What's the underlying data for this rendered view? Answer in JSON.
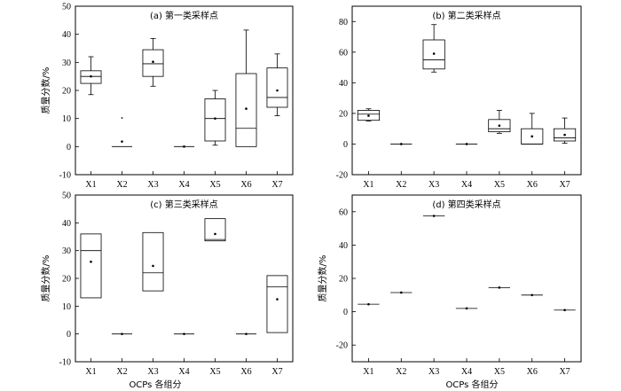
{
  "figure": {
    "x_axis_label": "OCPs 各组分",
    "y_axis_label": "质量分数/%"
  },
  "chart_data": [
    {
      "type": "box",
      "title": "(a) 第一类采样点",
      "ylabel": "质量分数/%",
      "xlabel": "",
      "ylim": [
        -10,
        50
      ],
      "yticks": [
        -10,
        0,
        10,
        20,
        30,
        40,
        50
      ],
      "categories": [
        "X1",
        "X2",
        "X3",
        "X4",
        "X5",
        "X6",
        "X7"
      ],
      "boxes": [
        {
          "category": "X1",
          "min": 18.5,
          "q1": 22.5,
          "median": 25.0,
          "q3": 27.0,
          "max": 32.0,
          "mean": 25.0
        },
        {
          "category": "X2",
          "min": 0,
          "q1": 0,
          "median": 0,
          "q3": 0,
          "max": 0,
          "mean": 1.8,
          "outliers": [
            10.2
          ]
        },
        {
          "category": "X3",
          "min": 21.5,
          "q1": 25.0,
          "median": 29.5,
          "q3": 34.5,
          "max": 38.5,
          "mean": 30.2
        },
        {
          "category": "X4",
          "min": 0,
          "q1": 0,
          "median": 0,
          "q3": 0,
          "max": 0,
          "mean": 0
        },
        {
          "category": "X5",
          "min": 0.5,
          "q1": 2.0,
          "median": 10.0,
          "q3": 17.0,
          "max": 20.0,
          "mean": 10.0
        },
        {
          "category": "X6",
          "min": 0,
          "q1": 0,
          "median": 6.5,
          "q3": 26.0,
          "max": 41.5,
          "mean": 13.5
        },
        {
          "category": "X7",
          "min": 11.0,
          "q1": 14.0,
          "median": 17.5,
          "q3": 28.0,
          "max": 33.0,
          "mean": 20.0
        }
      ]
    },
    {
      "type": "box",
      "title": "(b) 第二类采样点",
      "ylabel": "",
      "xlabel": "",
      "ylim": [
        -20,
        90
      ],
      "yticks": [
        -20,
        0,
        20,
        40,
        60,
        80
      ],
      "categories": [
        "X1",
        "X2",
        "X3",
        "X4",
        "X5",
        "X6",
        "X7"
      ],
      "boxes": [
        {
          "category": "X1",
          "min": 15.0,
          "q1": 15.5,
          "median": 19.5,
          "q3": 22.0,
          "max": 23.0,
          "mean": 18.5
        },
        {
          "category": "X2",
          "min": 0,
          "q1": 0,
          "median": 0,
          "q3": 0,
          "max": 0,
          "mean": 0
        },
        {
          "category": "X3",
          "min": 47.0,
          "q1": 49.0,
          "median": 55.0,
          "q3": 68.0,
          "max": 78.0,
          "mean": 59.0
        },
        {
          "category": "X4",
          "min": 0,
          "q1": 0,
          "median": 0,
          "q3": 0,
          "max": 0,
          "mean": 0
        },
        {
          "category": "X5",
          "min": 7.0,
          "q1": 8.0,
          "median": 10.0,
          "q3": 16.0,
          "max": 22.0,
          "mean": 12.0
        },
        {
          "category": "X6",
          "min": 0,
          "q1": 0,
          "median": 0,
          "q3": 10.0,
          "max": 20.0,
          "mean": 5.0
        },
        {
          "category": "X7",
          "min": 0.5,
          "q1": 2.0,
          "median": 4.0,
          "q3": 10.0,
          "max": 17.0,
          "mean": 6.0
        }
      ]
    },
    {
      "type": "box",
      "title": "(c) 第三类采样点",
      "ylabel": "质量分数/%",
      "xlabel": "OCPs 各组分",
      "ylim": [
        -10,
        50
      ],
      "yticks": [
        -10,
        0,
        10,
        20,
        30,
        40,
        50
      ],
      "categories": [
        "X1",
        "X2",
        "X3",
        "X4",
        "X5",
        "X6",
        "X7"
      ],
      "boxes": [
        {
          "category": "X1",
          "min": 13.0,
          "q1": 13.0,
          "median": 30.0,
          "q3": 36.0,
          "max": 36.0,
          "mean": 26.0
        },
        {
          "category": "X2",
          "min": 0,
          "q1": 0,
          "median": 0,
          "q3": 0,
          "max": 0,
          "mean": 0
        },
        {
          "category": "X3",
          "min": 15.5,
          "q1": 15.5,
          "median": 22.0,
          "q3": 36.5,
          "max": 36.5,
          "mean": 24.5
        },
        {
          "category": "X4",
          "min": 0,
          "q1": 0,
          "median": 0,
          "q3": 0,
          "max": 0,
          "mean": 0
        },
        {
          "category": "X5",
          "min": 33.5,
          "q1": 33.5,
          "median": 34.0,
          "q3": 41.5,
          "max": 41.5,
          "mean": 36.0
        },
        {
          "category": "X6",
          "min": 0,
          "q1": 0,
          "median": 0,
          "q3": 0,
          "max": 0,
          "mean": 0
        },
        {
          "category": "X7",
          "min": 0.5,
          "q1": 0.5,
          "median": 17.0,
          "q3": 21.0,
          "max": 21.0,
          "mean": 12.5
        }
      ]
    },
    {
      "type": "box",
      "title": "(d) 第四类采样点",
      "ylabel": "质量分数/%",
      "xlabel": "OCPs 各组分",
      "ylim": [
        -30,
        70
      ],
      "yticks": [
        -20,
        0,
        20,
        40,
        60
      ],
      "categories": [
        "X1",
        "X2",
        "X3",
        "X4",
        "X5",
        "X6",
        "X7"
      ],
      "boxes": [
        {
          "category": "X1",
          "min": 4.5,
          "q1": 4.5,
          "median": 4.5,
          "q3": 4.5,
          "max": 4.5,
          "mean": 4.5
        },
        {
          "category": "X2",
          "min": 11.5,
          "q1": 11.5,
          "median": 11.5,
          "q3": 11.5,
          "max": 11.5,
          "mean": 11.5
        },
        {
          "category": "X3",
          "min": 57.5,
          "q1": 57.5,
          "median": 57.5,
          "q3": 57.5,
          "max": 57.5,
          "mean": 57.5
        },
        {
          "category": "X4",
          "min": 2.0,
          "q1": 2.0,
          "median": 2.0,
          "q3": 2.0,
          "max": 2.0,
          "mean": 2.0
        },
        {
          "category": "X5",
          "min": 14.5,
          "q1": 14.5,
          "median": 14.5,
          "q3": 14.5,
          "max": 14.5,
          "mean": 14.5
        },
        {
          "category": "X6",
          "min": 10.0,
          "q1": 10.0,
          "median": 10.0,
          "q3": 10.0,
          "max": 10.0,
          "mean": 10.0
        },
        {
          "category": "X7",
          "min": 1.0,
          "q1": 1.0,
          "median": 1.0,
          "q3": 1.0,
          "max": 1.0,
          "mean": 1.0
        }
      ]
    }
  ]
}
